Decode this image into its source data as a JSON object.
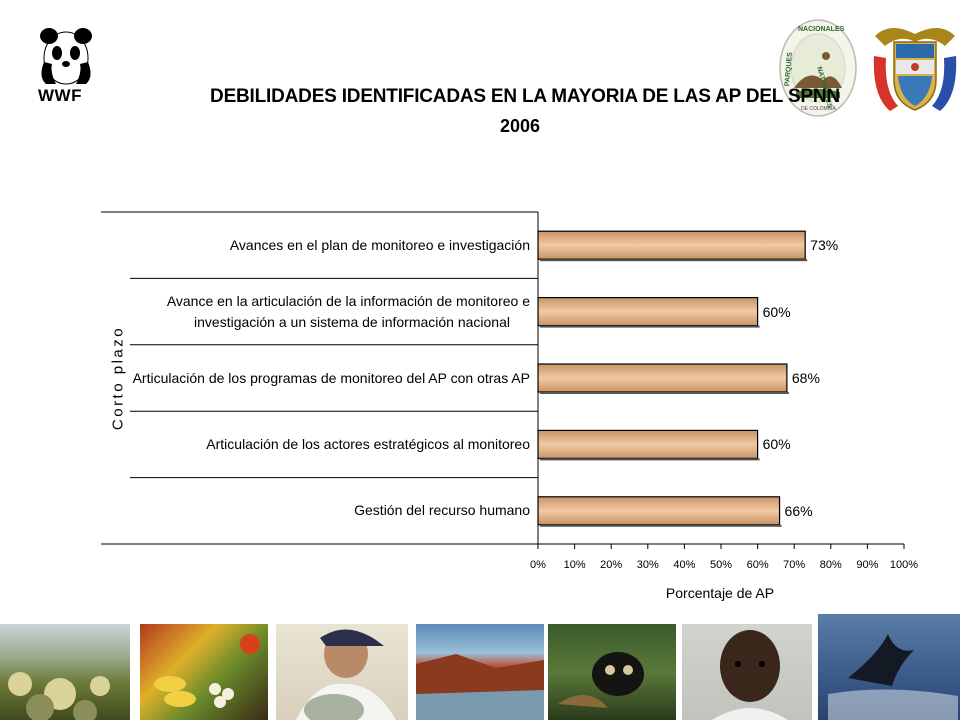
{
  "chart_data": {
    "type": "bar",
    "orientation": "horizontal",
    "title": "DEBILIDADES IDENTIFICADAS EN LA MAYORIA DE LAS AP DEL SPNN",
    "subtitle": "2006",
    "xlabel": "Porcentaje de AP",
    "group_label": "Corto plazo",
    "categories": [
      [
        "Avances en el plan de monitoreo e investigación"
      ],
      [
        "Avance en la articulación de la información de monitoreo e",
        "investigación a un sistema de información nacional"
      ],
      [
        "Articulación de los programas de monitoreo del AP con otras AP"
      ],
      [
        "Articulación de los actores estratégicos al monitoreo"
      ],
      [
        "Gestión del recurso humano"
      ]
    ],
    "values": [
      73,
      60,
      68,
      60,
      66
    ],
    "data_labels": [
      "73%",
      "60%",
      "68%",
      "60%",
      "66%"
    ],
    "xlim": [
      0,
      100
    ],
    "x_ticks": [
      "0%",
      "10%",
      "20%",
      "30%",
      "40%",
      "50%",
      "60%",
      "70%",
      "80%",
      "90%",
      "100%"
    ],
    "grid": false,
    "legend": "none",
    "bar_color": "#E4B48E"
  },
  "logos": {
    "wwf_text": "WWF",
    "parques_lines": [
      "NACIONALES",
      "NATURALES",
      "PARQUES",
      "DE COLOMBIA"
    ]
  }
}
